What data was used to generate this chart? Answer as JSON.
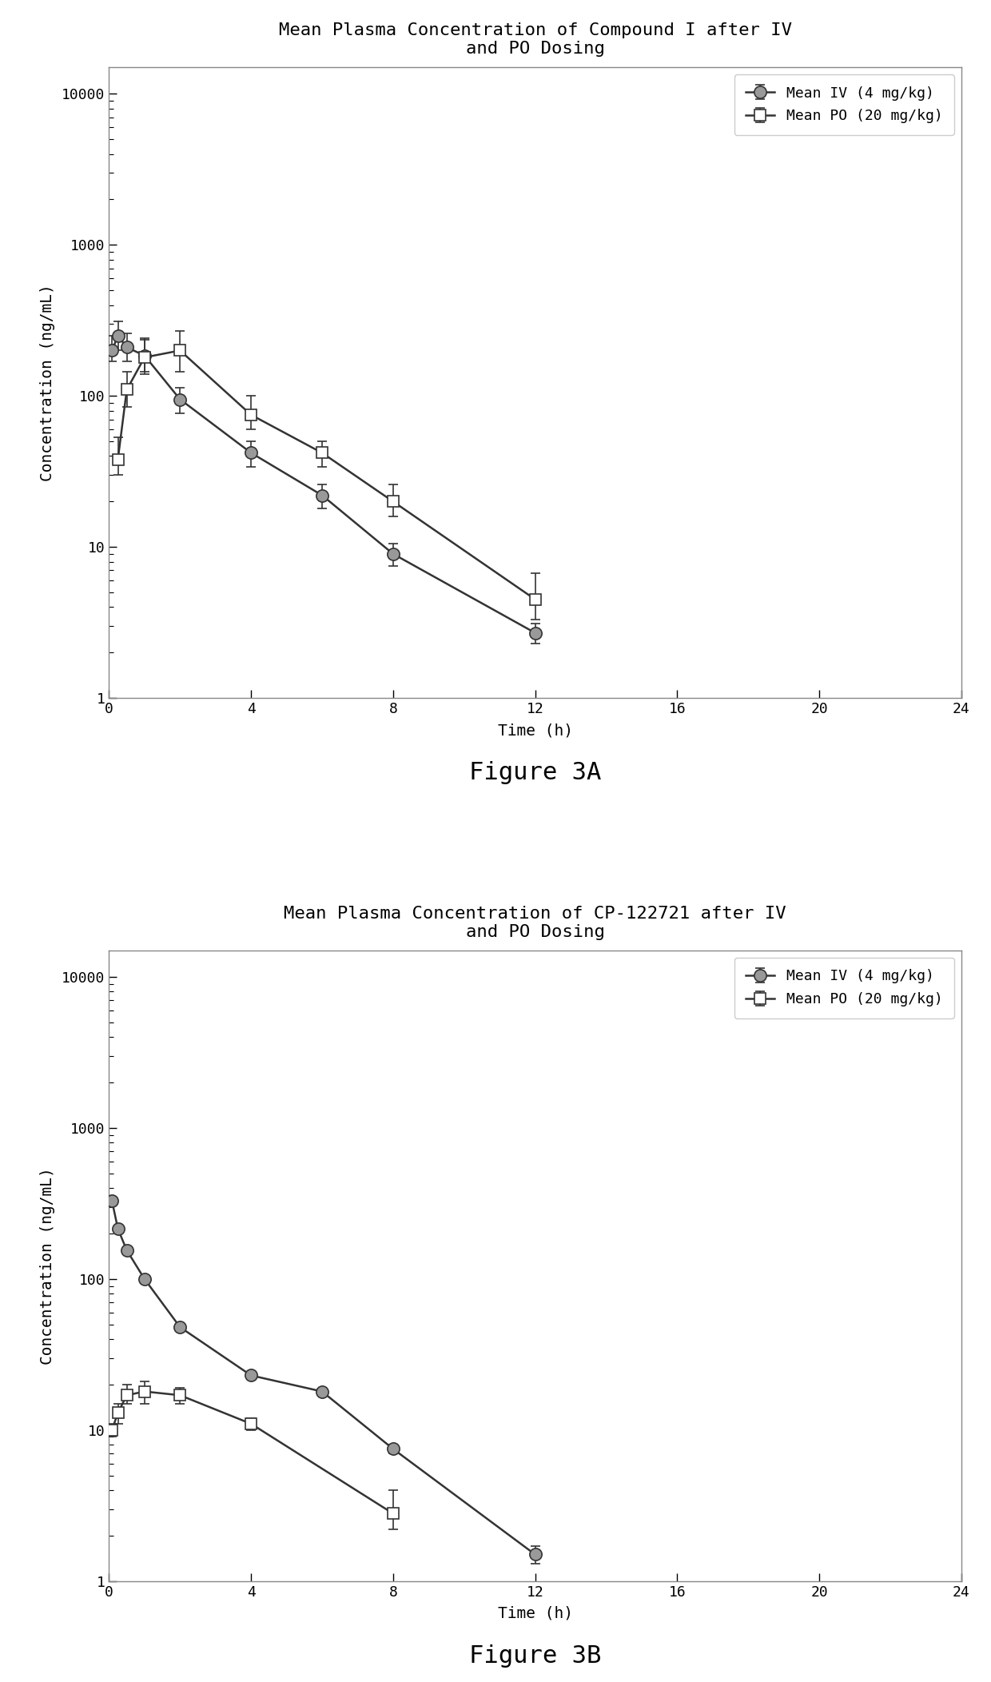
{
  "fig3a": {
    "title": "Mean Plasma Concentration of Compound I after IV\nand PO Dosing",
    "figure_label": "Figure 3A",
    "iv": {
      "label": "Mean IV (4 mg/kg)",
      "x": [
        0.083,
        0.25,
        0.5,
        1,
        2,
        4,
        6,
        8,
        12
      ],
      "y": [
        200,
        250,
        210,
        185,
        95,
        42,
        22,
        9,
        2.7
      ],
      "yerr_lo": [
        30,
        50,
        40,
        40,
        18,
        8,
        4,
        1.5,
        0.4
      ],
      "yerr_hi": [
        50,
        60,
        50,
        50,
        18,
        8,
        4,
        1.5,
        0.4
      ]
    },
    "po": {
      "label": "Mean PO (20 mg/kg)",
      "x": [
        0.25,
        0.5,
        1,
        2,
        4,
        6,
        8,
        12
      ],
      "y": [
        38,
        110,
        180,
        200,
        75,
        42,
        20,
        4.5
      ],
      "yerr_lo": [
        8,
        25,
        40,
        55,
        15,
        8,
        4,
        1.2
      ],
      "yerr_hi": [
        15,
        35,
        60,
        70,
        25,
        8,
        6,
        2.2
      ]
    }
  },
  "fig3b": {
    "title": "Mean Plasma Concentration of CP-122721 after IV\nand PO Dosing",
    "figure_label": "Figure 3B",
    "iv": {
      "label": "Mean IV (4 mg/kg)",
      "x": [
        0.083,
        0.25,
        0.5,
        1,
        2,
        4,
        6,
        8,
        12
      ],
      "y": [
        330,
        215,
        155,
        100,
        48,
        23,
        18,
        7.5,
        1.5
      ],
      "yerr_lo": [
        0,
        0,
        0,
        0,
        0,
        0,
        0,
        0.5,
        0.2
      ],
      "yerr_hi": [
        0,
        0,
        0,
        0,
        0,
        0,
        0,
        0.5,
        0.2
      ]
    },
    "po": {
      "label": "Mean PO (20 mg/kg)",
      "x": [
        0.083,
        0.25,
        0.5,
        1,
        2,
        4,
        8
      ],
      "y": [
        10,
        13,
        17,
        18,
        17,
        11,
        2.8
      ],
      "yerr_lo": [
        1,
        2,
        2,
        3,
        2,
        1,
        0.6
      ],
      "yerr_hi": [
        1,
        2,
        3,
        3,
        2,
        1,
        1.2
      ]
    }
  },
  "ylabel": "Concentration (ng/mL)",
  "xlabel": "Time (h)",
  "xlim": [
    0,
    24
  ],
  "ylim_log": [
    1,
    15000
  ],
  "xticks": [
    0,
    4,
    8,
    12,
    16,
    20,
    24
  ],
  "yticks": [
    1,
    10,
    100,
    1000,
    10000
  ],
  "ytick_labels": [
    "1",
    "10",
    "100",
    "1000",
    "10000"
  ],
  "background_color": "#ffffff",
  "line_color": "#333333",
  "marker_iv_color": "#999999",
  "marker_po_color": "#ffffff",
  "title_fontsize": 16,
  "label_fontsize": 14,
  "tick_fontsize": 13,
  "legend_fontsize": 13,
  "figure_label_fontsize": 22
}
